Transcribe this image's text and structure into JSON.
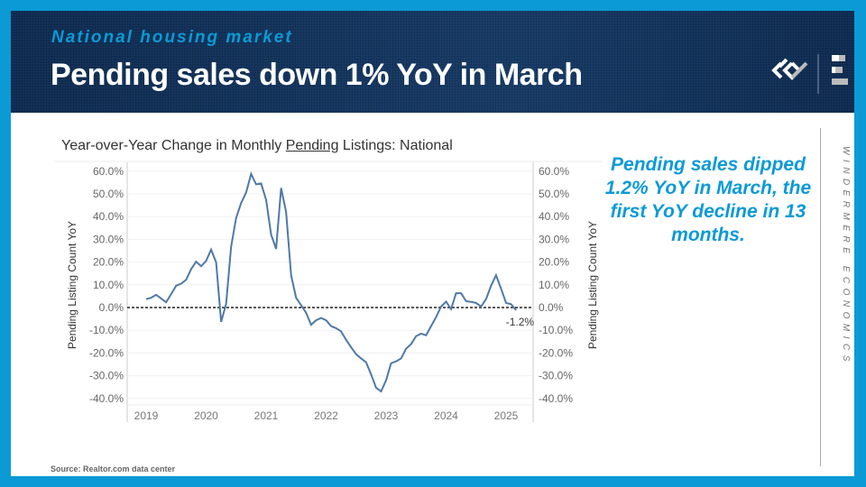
{
  "header": {
    "kicker": "National housing market",
    "title": "Pending sales down 1% YoY in March"
  },
  "callout": "Pending sales dipped 1.2% YoY in March, the first YoY decline in 13 months.",
  "brand": "WINDERMERE ECONOMICS",
  "source": "Source: Realtor.com data center",
  "colors": {
    "accent": "#0b9ad6",
    "line": "#4e79a7",
    "header": "#12325c"
  },
  "chart_data": {
    "type": "line",
    "title_prefix": "Year-over-Year Change in Monthly ",
    "title_emphasis": "Pending",
    "title_suffix": " Listings: National",
    "ylabel": "Pending Listing Count YoY",
    "ylim": [
      -40,
      60
    ],
    "yticks": [
      "60.0%",
      "50.0%",
      "40.0%",
      "30.0%",
      "20.0%",
      "10.0%",
      "0.0%",
      "-10.0%",
      "-20.0%",
      "-30.0%",
      "-40.0%"
    ],
    "xticks": [
      "2019",
      "2020",
      "2021",
      "2022",
      "2023",
      "2024",
      "2025"
    ],
    "start": "2019-01",
    "frequency": "monthly",
    "series": [
      {
        "name": "Pending Listing Count YoY",
        "values": [
          3.7,
          4.3,
          5.6,
          4.0,
          2.3,
          5.9,
          9.6,
          10.5,
          12.2,
          16.9,
          20.2,
          18.2,
          20.5,
          25.5,
          19.9,
          -6.3,
          1.6,
          26.8,
          39.4,
          46.0,
          50.6,
          58.8,
          54.2,
          54.6,
          47.4,
          32.1,
          25.8,
          52.6,
          42.0,
          14.2,
          4.3,
          1.0,
          -2.3,
          -7.6,
          -5.6,
          -4.6,
          -5.6,
          -8.2,
          -9.1,
          -10.5,
          -14.2,
          -17.5,
          -20.5,
          -22.4,
          -24.1,
          -29.4,
          -35.3,
          -36.9,
          -32.0,
          -24.5,
          -23.7,
          -22.4,
          -18.1,
          -16.1,
          -12.6,
          -11.5,
          -12.2,
          -8.2,
          -4.2,
          0.4,
          2.6,
          -0.7,
          6.3,
          6.3,
          2.8,
          2.5,
          2.0,
          0.4,
          3.7,
          9.6,
          14.2,
          8.3,
          2.0,
          1.5,
          -1.2
        ]
      }
    ],
    "annotation": "-1.2%",
    "reference_line": 0,
    "grid": true
  }
}
